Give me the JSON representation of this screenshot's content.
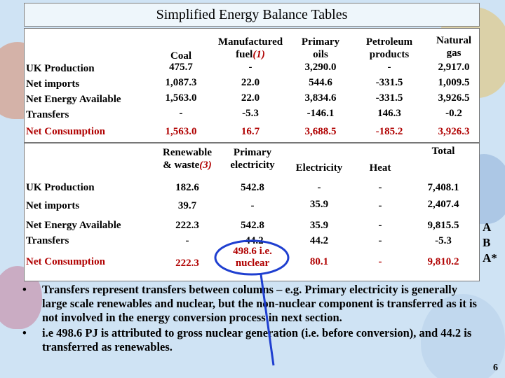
{
  "title": "Simplified Energy Balance Tables",
  "table1": {
    "headers": {
      "coal": "Coal",
      "manufactured": "Manufactured",
      "manufactured_fuel": "fuel",
      "manufactured_note": "(1)",
      "primary_oils_1": "Primary",
      "primary_oils_2": "oils",
      "petroleum_1": "Petroleum",
      "petroleum_2": "products",
      "natural_1": "Natural",
      "natural_2": "gas"
    },
    "rows": [
      {
        "label": "UK Production",
        "values": [
          "475.7",
          "-",
          "3,290.0",
          "-",
          "2,917.0"
        ]
      },
      {
        "label": "Net imports",
        "values": [
          "1,087.3",
          "22.0",
          "544.6",
          "-331.5",
          "1,009.5"
        ]
      },
      {
        "label": "Net Energy Available",
        "values": [
          "1,563.0",
          "22.0",
          "3,834.6",
          "-331.5",
          "3,926.5"
        ]
      },
      {
        "label": "Transfers",
        "values": [
          "-",
          "-5.3",
          "-146.1",
          "146.3",
          "-0.2"
        ]
      },
      {
        "label": "Net Consumption",
        "values": [
          "1,563.0",
          "16.7",
          "3,688.5",
          "-185.2",
          "3,926.3"
        ]
      }
    ]
  },
  "table2": {
    "headers": {
      "renewable_1": "Renewable",
      "renewable_2": "& waste",
      "renewable_note": "(3)",
      "primary_elec_1": "Primary",
      "primary_elec_2": "electricity",
      "electricity": "Electricity",
      "heat": "Heat",
      "total": "Total"
    },
    "rows": [
      {
        "label": "UK Production",
        "values": [
          "182.6",
          "542.8",
          "-",
          "-",
          "7,408.1"
        ]
      },
      {
        "label": "Net imports",
        "values": [
          "39.7",
          "-",
          "35.9",
          "-",
          "2,407.4"
        ]
      },
      {
        "label": "Net Energy Available",
        "values": [
          "222.3",
          "542.8",
          "35.9",
          "-",
          "9,815.5"
        ]
      },
      {
        "label": "Transfers",
        "values": [
          "-",
          "-44.2",
          "44.2",
          "-",
          "-5.3"
        ]
      },
      {
        "label": "Net Consumption",
        "values": [
          "222.3",
          "498.6 i.e. nuclear",
          "80.1",
          "-",
          "9,810.2"
        ]
      }
    ]
  },
  "side_labels": [
    "A",
    "B",
    "A*"
  ],
  "bullets": [
    "Transfers represent transfers between columns – e.g. Primary electricity is generally large scale renewables and nuclear, but the non-nuclear component is transferred as it is not involved in the energy conversion process in next section.",
    "i.e 498.6 PJ is attributed to gross nuclear generation (i.e. before conversion), and 44.2 is transferred as renewables."
  ],
  "page_number": "6",
  "colors": {
    "accent_red": "#b00000",
    "annotation_blue": "#1f3fd0"
  }
}
